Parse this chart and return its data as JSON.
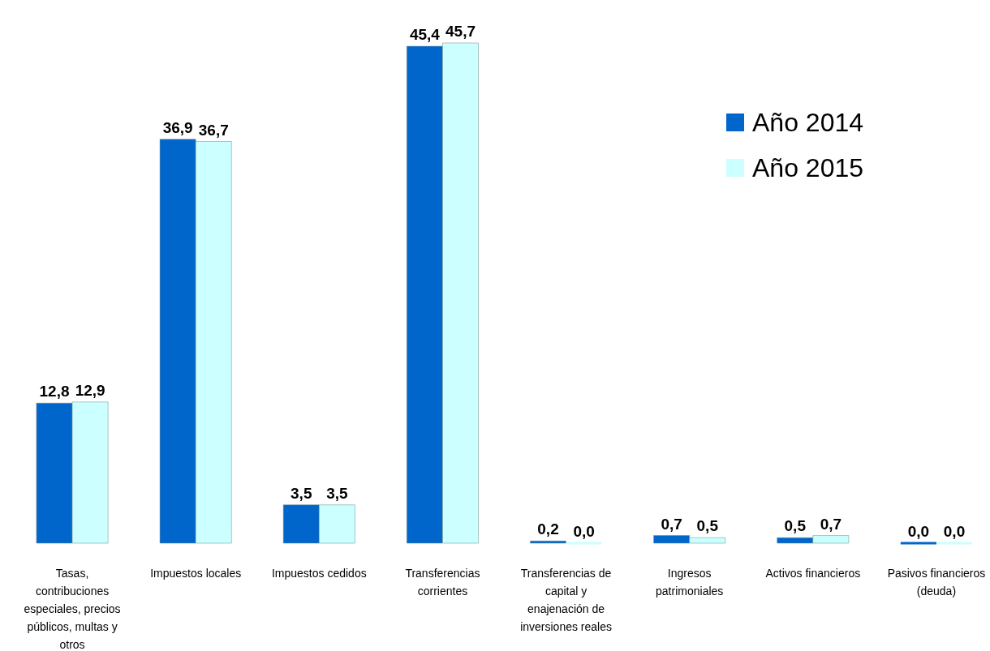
{
  "chart_data": {
    "type": "bar",
    "categories": [
      "Tasas, contribuciones especiales, precios públicos, multas y otros",
      "Impuestos locales",
      "Impuestos cedidos",
      "Transferencias corrientes",
      "Transferencias de capital y enajenación de inversiones reales",
      "Ingresos patrimoniales",
      "Activos financieros",
      "Pasivos financieros (deuda)"
    ],
    "series": [
      {
        "name": "Año 2014",
        "color": "#0066cc",
        "values": [
          12.8,
          36.9,
          3.5,
          45.4,
          0.2,
          0.7,
          0.5,
          0.0
        ],
        "value_labels": [
          "12,8",
          "36,9",
          "3,5",
          "45,4",
          "0,2",
          "0,7",
          "0,5",
          "0,0"
        ]
      },
      {
        "name": "Año 2015",
        "color": "#ccffff",
        "values": [
          12.9,
          36.7,
          3.5,
          45.7,
          0.0,
          0.5,
          0.7,
          0.0
        ],
        "value_labels": [
          "12,9",
          "36,7",
          "3,5",
          "45,7",
          "0,0",
          "0,5",
          "0,7",
          "0,0"
        ]
      }
    ],
    "legend": "top right",
    "grid": false
  }
}
